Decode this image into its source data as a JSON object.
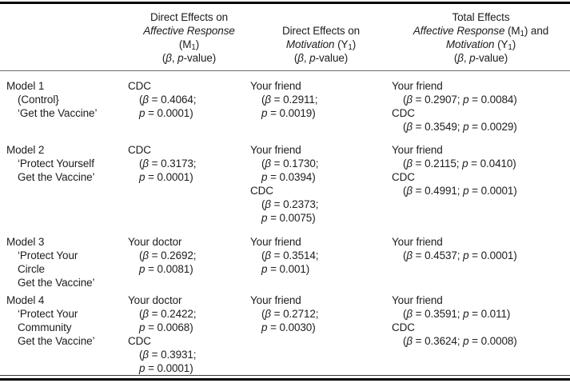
{
  "colors": {
    "background": "#ffffff",
    "text": "#1d1d1d",
    "rule_heavy": "#000000",
    "rule_light": "#6e6e6e"
  },
  "table": {
    "header": {
      "columns": [
        {
          "lines": []
        },
        {
          "lines": [
            "Direct Effects on",
            "*Affective Response*",
            "(M~1~)",
            "(*β*, *p*-value)"
          ]
        },
        {
          "lines": [
            "Direct Effects on",
            "*Motivation* (Y~1~)",
            "(*β*, *p*-value)"
          ]
        },
        {
          "lines": [
            "Total Effects",
            "*Affective Response* (M~1~) and",
            "*Motivation* (Y~1~)",
            "(*β*, *p*-value)"
          ]
        }
      ]
    },
    "rows": [
      {
        "cells": [
          [
            "Model 1",
            ">(Control}",
            ">‘Get the Vaccine’"
          ],
          [
            "CDC",
            ">(*β* = 0.4064;",
            ">*p* = 0.0001)"
          ],
          [
            "Your friend",
            ">(*β* = 0.2911;",
            ">*p* = 0.0019)"
          ],
          [
            "Your friend",
            ">(*β* = 0.2907; *p* = 0.0084)",
            "CDC",
            ">(*β* = 0.3549; *p* = 0.0029)"
          ]
        ]
      },
      {
        "cells": [
          [
            "Model 2",
            ">‘Protect Yourself",
            ">Get the Vaccine’"
          ],
          [
            "CDC",
            ">(*β* = 0.3173;",
            ">*p* = 0.0001)"
          ],
          [
            "Your friend",
            ">(*β* = 0.1730;",
            ">*p* = 0.0394)",
            "CDC",
            ">(*β* = 0.2373;",
            ">*p* = 0.0075)"
          ],
          [
            "Your friend",
            ">(*β* = 0.2115; *p* = 0.0410)",
            "CDC",
            ">(*β* = 0.4991; *p* = 0.0001)"
          ]
        ]
      },
      {
        "cells": [
          [
            "Model 3",
            ">‘Protect Your",
            ">Circle",
            ">Get the Vaccine’"
          ],
          [
            "Your doctor",
            ">(*β* = 0.2692;",
            ">*p* = 0.0081)"
          ],
          [
            "Your friend",
            ">(*β* = 0.3514;",
            ">*p* = 0.001)"
          ],
          [
            "Your friend",
            ">(*β* = 0.4537; *p* = 0.0001)"
          ]
        ]
      },
      {
        "cells": [
          [
            "Model 4",
            ">‘Protect Your",
            ">Community",
            ">Get the Vaccine’"
          ],
          [
            "Your doctor",
            ">(*β* = 0.2422;",
            ">*p* = 0.0068)",
            "CDC",
            ">(*β* = 0.3931;",
            ">*p* = 0.0001)"
          ],
          [
            "Your friend",
            ">(*β* = 0.2712;",
            ">*p* = 0.0030)"
          ],
          [
            "Your friend",
            ">(*β* = 0.3591; *p* = 0.011)",
            "CDC",
            ">(*β* = 0.3624; *p* = 0.0008)"
          ]
        ]
      }
    ]
  }
}
